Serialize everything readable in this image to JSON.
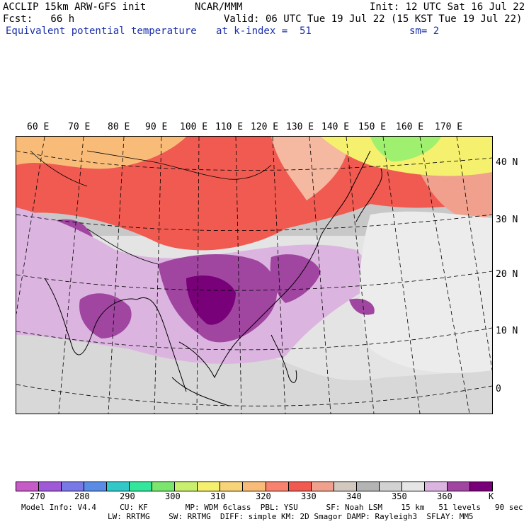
{
  "header": {
    "model": "ACCLIP 15km ARW-GFS init",
    "org": "NCAR/MMM",
    "init": "Init: 12 UTC Sat 16 Jul 22",
    "fcst": "Fcst:   66 h",
    "valid": "Valid: 06 UTC Tue 19 Jul 22 (15 KST Tue 19 Jul 22)",
    "field": "Equivalent potential temperature",
    "level": "at k-index =  51",
    "smooth": "sm= 2"
  },
  "map": {
    "lon_labels": [
      "60 E",
      "70 E",
      "80 E",
      "90 E",
      "100 E",
      "110 E",
      "120 E",
      "130 E",
      "140 E",
      "150 E",
      "160 E",
      "170 E"
    ],
    "lat_labels": [
      "40 N",
      "30 N",
      "20 N",
      "10 N",
      "0"
    ]
  },
  "colorbar": {
    "colors": [
      "#c65ac6",
      "#a05ad8",
      "#7878e6",
      "#5a8ce6",
      "#32c8c8",
      "#32e69b",
      "#7ae66e",
      "#c8f06e",
      "#f5f06e",
      "#f8d478",
      "#f8bc78",
      "#f8826e",
      "#f05a50",
      "#f0a08c",
      "#d2c8be",
      "#b4b4b4",
      "#d2d2d2",
      "#e6e6e6",
      "#dcb4e0",
      "#a046a0",
      "#780078"
    ],
    "tick_labels": [
      "270",
      "280",
      "290",
      "300",
      "310",
      "320",
      "330",
      "340",
      "350",
      "360"
    ],
    "unit": "K"
  },
  "footer": {
    "line1": "Model Info: V4.4     CU: KF        MP: WDM 6class  PBL: YSU      SF: Noah LSM    15 km   51 levels   90 sec",
    "line2": "LW: RRTMG    SW: RRTMG  DIFF: simple KM: 2D Smagor DAMP: Rayleigh3  SFLAY: MM5"
  }
}
